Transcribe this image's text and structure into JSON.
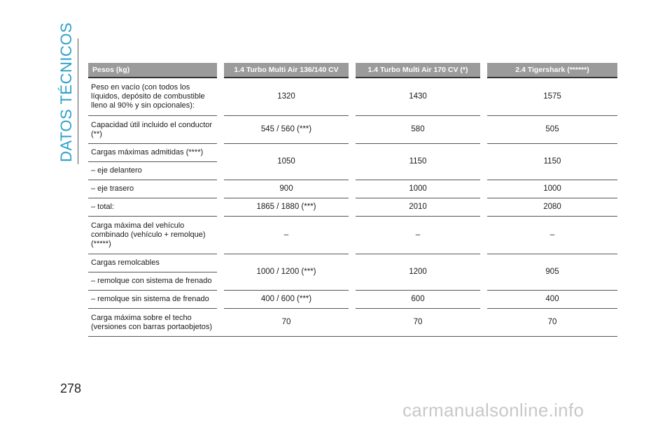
{
  "section_title": "DATOS TÉCNICOS",
  "page_number": "278",
  "watermark": "carmanualsonline.info",
  "table": {
    "headers": [
      "Pesos (kg)",
      "1.4 Turbo Multi Air 136/140 CV",
      "1.4 Turbo Multi Air 170 CV (*)",
      "2.4 Tigershark (******)"
    ],
    "rows": [
      {
        "label": "Peso en vacío (con todos los líquidos, depósito de combustible lleno al 90% y sin opcionales):",
        "values": [
          "1320",
          "1430",
          "1575"
        ]
      },
      {
        "label": "Capacidad útil incluido el conductor (**)",
        "values": [
          "545 / 560 (***)",
          "580",
          "505"
        ]
      },
      {
        "label": "Cargas máximas admitidas (****)",
        "values": [
          "1050",
          "1150",
          "1150"
        ],
        "sublabel": "– eje delantero"
      },
      {
        "label": "– eje trasero",
        "values": [
          "900",
          "1000",
          "1000"
        ]
      },
      {
        "label": "– total:",
        "values": [
          "1865 / 1880 (***)",
          "2010",
          "2080"
        ]
      },
      {
        "label": "Carga máxima del vehículo combinado (vehículo + remolque) (*****)",
        "values": [
          "–",
          "–",
          "–"
        ]
      },
      {
        "label": "Cargas remolcables",
        "values": [
          "1000 / 1200 (***)",
          "1200",
          "905"
        ],
        "sublabel": "– remolque con sistema de frenado"
      },
      {
        "label": "– remolque sin sistema de frenado",
        "values": [
          "400 / 600 (***)",
          "600",
          "400"
        ]
      },
      {
        "label": "Carga máxima sobre el techo (versiones con barras portaobjetos)",
        "values": [
          "70",
          "70",
          "70"
        ]
      }
    ]
  }
}
